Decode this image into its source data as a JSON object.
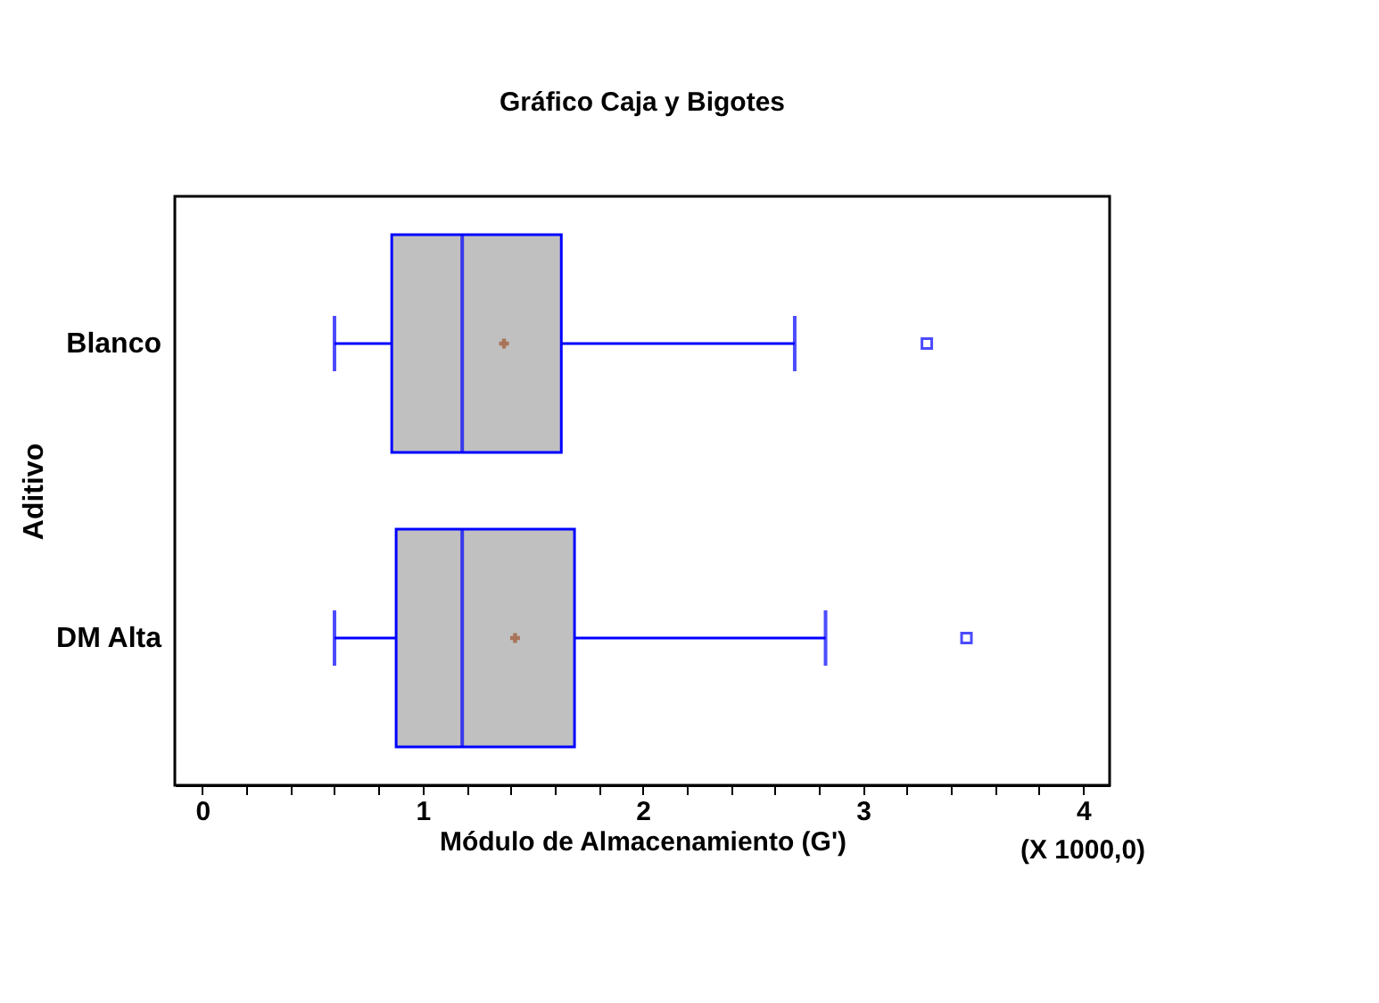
{
  "chart_data": {
    "type": "box",
    "title": "Gráfico Caja y Bigotes",
    "xlabel": "Módulo de Almacenamiento (G')",
    "ylabel": "Aditivo",
    "orientation": "horizontal",
    "categories": [
      "Blanco",
      "DM Alta"
    ],
    "series": [
      {
        "color": "#c0c0c0",
        "boxes": [
          {
            "low": 0.6,
            "q1": 0.86,
            "median": 1.18,
            "q3": 1.63,
            "high": 2.69,
            "mean": 1.37,
            "outliers": [
              3.29
            ]
          },
          {
            "low": 0.6,
            "q1": 0.88,
            "median": 1.18,
            "q3": 1.69,
            "high": 2.83,
            "mean": 1.42,
            "outliers": [
              3.47
            ]
          }
        ]
      }
    ],
    "xlim": [
      -0.125,
      4.12
    ],
    "xticks": [
      0,
      {
        "value": 0.2,
        "label": null
      },
      {
        "value": 0.4,
        "label": null
      },
      {
        "value": 0.6,
        "label": null
      },
      {
        "value": 0.8,
        "label": null
      },
      1,
      {
        "value": 1.2,
        "label": null
      },
      {
        "value": 1.4,
        "label": null
      },
      {
        "value": 1.6,
        "label": null
      },
      {
        "value": 1.8,
        "label": null
      },
      2,
      {
        "value": 2.2,
        "label": null
      },
      {
        "value": 2.4,
        "label": null
      },
      {
        "value": 2.6,
        "label": null
      },
      {
        "value": 2.8,
        "label": null
      },
      3,
      {
        "value": 3.2,
        "label": null
      },
      {
        "value": 3.4,
        "label": null
      },
      {
        "value": 3.6,
        "label": null
      },
      {
        "value": 3.8,
        "label": null
      },
      4
    ],
    "annotations": [
      "(X 1000,0)"
    ],
    "grid": false
  }
}
